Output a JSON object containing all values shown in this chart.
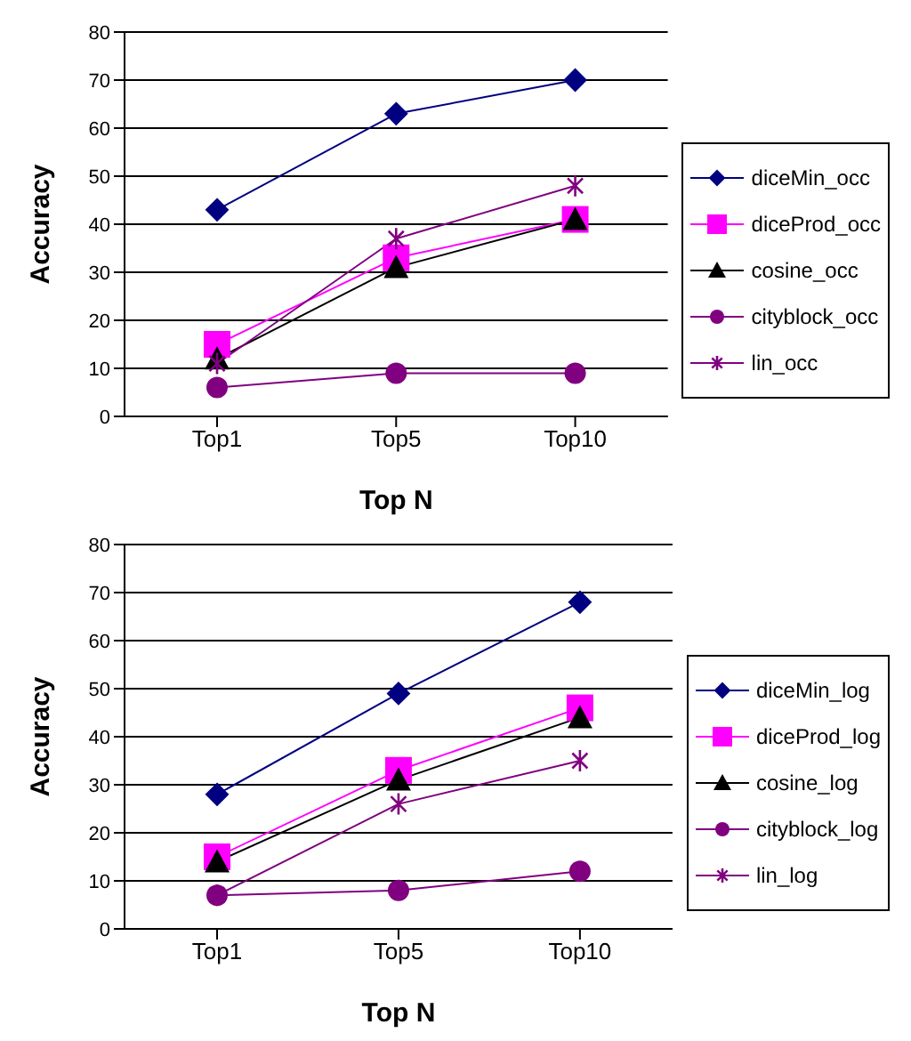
{
  "chart_data": [
    {
      "type": "line",
      "xlabel": "Top N",
      "ylabel": "Accuracy",
      "categories": [
        "Top1",
        "Top5",
        "Top10"
      ],
      "ylim": [
        0,
        80
      ],
      "yticks": [
        0,
        10,
        20,
        30,
        40,
        50,
        60,
        70,
        80
      ],
      "grid": "y",
      "legend": "right",
      "series": [
        {
          "name": "diceMin_occ",
          "color": "#000080",
          "marker": "diamond",
          "values": [
            43,
            63,
            70
          ]
        },
        {
          "name": "diceProd_occ",
          "color": "#ff00ff",
          "marker": "square",
          "values": [
            15,
            33,
            41
          ]
        },
        {
          "name": "cosine_occ",
          "color": "#000000",
          "marker": "triangle",
          "values": [
            12,
            31,
            41
          ]
        },
        {
          "name": "cityblock_occ",
          "color": "#800080",
          "marker": "circle",
          "values": [
            6,
            9,
            9
          ]
        },
        {
          "name": "lin_occ",
          "color": "#800080",
          "marker": "cross",
          "values": [
            11,
            37,
            48
          ]
        }
      ]
    },
    {
      "type": "line",
      "xlabel": "Top N",
      "ylabel": "Accuracy",
      "categories": [
        "Top1",
        "Top5",
        "Top10"
      ],
      "ylim": [
        0,
        80
      ],
      "yticks": [
        0,
        10,
        20,
        30,
        40,
        50,
        60,
        70,
        80
      ],
      "grid": "y",
      "legend": "right",
      "series": [
        {
          "name": "diceMin_log",
          "color": "#000080",
          "marker": "diamond",
          "values": [
            28,
            49,
            68
          ]
        },
        {
          "name": "diceProd_log",
          "color": "#ff00ff",
          "marker": "square",
          "values": [
            15,
            33,
            46
          ]
        },
        {
          "name": "cosine_log",
          "color": "#000000",
          "marker": "triangle",
          "values": [
            14,
            31,
            44
          ]
        },
        {
          "name": "cityblock_log",
          "color": "#800080",
          "marker": "circle",
          "values": [
            7,
            8,
            12
          ]
        },
        {
          "name": "lin_log",
          "color": "#800080",
          "marker": "cross",
          "values": [
            7,
            26,
            35
          ]
        }
      ]
    }
  ]
}
